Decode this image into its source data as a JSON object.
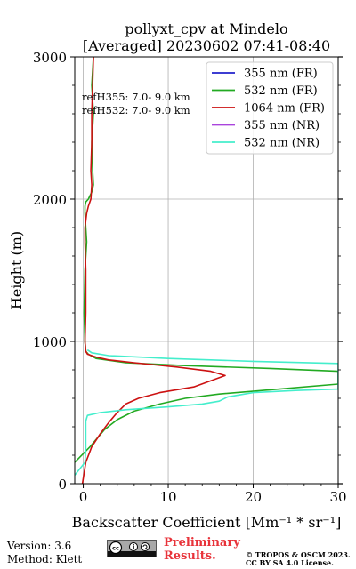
{
  "chart_data": {
    "type": "line",
    "title": [
      "pollyxt_cpv at Mindelo",
      "[Averaged] 20230602 07:41-08:40"
    ],
    "xlabel": "Backscatter Coefficient [Mm⁻¹ * sr⁻¹]",
    "ylabel": "Height (m)",
    "xlim": [
      -1,
      30
    ],
    "ylim": [
      0,
      3000
    ],
    "xticks": [
      0,
      10,
      20,
      30
    ],
    "yticks": [
      0,
      1000,
      2000,
      3000
    ],
    "grid": true,
    "legend_position": "top-right",
    "annotations": [
      "refH355:  7.0- 9.0 km",
      "refH532:  7.0- 9.0 km"
    ],
    "series": [
      {
        "name": "355 nm (FR)",
        "color": "#2222cc",
        "x": [],
        "y": []
      },
      {
        "name": "532 nm (FR)",
        "color": "#22aa22",
        "x": [
          -1.0,
          0.8,
          2.5,
          4.0,
          6.0,
          9.0,
          12.0,
          16.0,
          22.0,
          30.0,
          30.0,
          22.0,
          12.0,
          5.0,
          1.5,
          0.6,
          0.3,
          0.2,
          0.1,
          0.2,
          0.4,
          0.3,
          0.2,
          0.2,
          0.3,
          0.6,
          1.0,
          1.2,
          1.1,
          1.0,
          1.2,
          1.0,
          1.2
        ],
        "y": [
          150,
          260,
          380,
          450,
          510,
          560,
          600,
          630,
          660,
          700,
          790,
          810,
          830,
          850,
          880,
          910,
          930,
          1000,
          1200,
          1500,
          1700,
          1800,
          1900,
          1950,
          1980,
          2000,
          2050,
          2100,
          2200,
          2400,
          2600,
          2800,
          3000
        ]
      },
      {
        "name": "1064 nm (FR)",
        "color": "#cc1111",
        "x": [
          -0.1,
          0.3,
          1.0,
          2.0,
          3.0,
          4.0,
          5.0,
          6.5,
          9.0,
          13.0,
          16.7,
          15.0,
          11.0,
          6.0,
          3.0,
          1.5,
          0.5,
          0.3,
          0.2,
          0.3,
          0.3,
          0.2,
          0.2,
          0.4,
          0.6,
          0.9,
          1.0,
          0.9,
          1.0,
          1.0,
          1.1,
          1.2
        ],
        "y": [
          0,
          150,
          260,
          350,
          430,
          500,
          560,
          600,
          640,
          680,
          760,
          790,
          820,
          850,
          870,
          890,
          910,
          930,
          1000,
          1200,
          1500,
          1700,
          1800,
          1900,
          1950,
          2000,
          2100,
          2200,
          2400,
          2600,
          2800,
          3000
        ]
      },
      {
        "name": "355 nm (NR)",
        "color": "#aa44dd",
        "x": [],
        "y": []
      },
      {
        "name": "532 nm (NR)",
        "color": "#44eecc",
        "x": [
          -1.0,
          0.2,
          0.3,
          0.3,
          0.5,
          2.0,
          5.0,
          10.0,
          14.0,
          16.0,
          17.0,
          20.0,
          25.0,
          30.0,
          30.0,
          20.0,
          10.0,
          3.0,
          1.0,
          0.5
        ],
        "y": [
          60,
          150,
          250,
          440,
          480,
          500,
          520,
          540,
          560,
          580,
          610,
          640,
          655,
          665,
          845,
          860,
          880,
          900,
          920,
          940
        ]
      }
    ]
  },
  "footer": {
    "version": "Version: 3.6",
    "method": "Method: Klett",
    "preliminary": [
      "Preliminary",
      "Results."
    ],
    "copyright": [
      "© TROPOS & OSCM 2023.",
      "CC BY SA 4.0 License."
    ]
  },
  "badge": {
    "icon": "cc-by-sa-icon"
  }
}
